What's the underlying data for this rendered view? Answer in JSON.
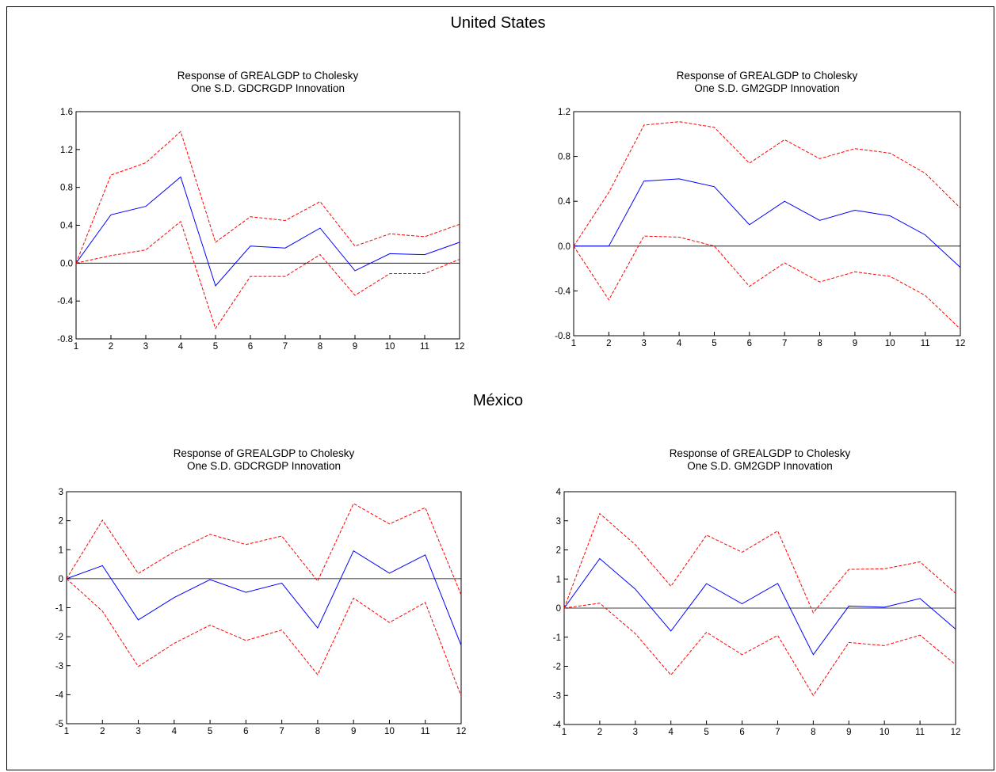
{
  "sections": [
    {
      "title": "United States"
    },
    {
      "title": "México"
    }
  ],
  "chart_data": [
    {
      "type": "line",
      "title_line1": "Response of GREALGDP to Cholesky",
      "title_line2": "One S.D. GDCRGDP Innovation",
      "x": [
        1,
        2,
        3,
        4,
        5,
        6,
        7,
        8,
        9,
        10,
        11,
        12
      ],
      "ylim": [
        -0.8,
        1.6
      ],
      "yticks": [
        "-0.8",
        "-0.4",
        "0.0",
        "0.4",
        "0.8",
        "1.2",
        "1.6"
      ],
      "grid": false,
      "series": [
        {
          "role": "response",
          "color": "#0000ff",
          "style": "solid",
          "values": [
            0.0,
            0.51,
            0.6,
            0.91,
            -0.24,
            0.18,
            0.16,
            0.37,
            -0.08,
            0.1,
            0.09,
            0.22
          ]
        },
        {
          "role": "upper band",
          "color": "#ff0000",
          "style": "dashed",
          "values": [
            0.0,
            0.93,
            1.06,
            1.39,
            0.22,
            0.49,
            0.45,
            0.65,
            0.18,
            0.31,
            0.28,
            0.41
          ]
        },
        {
          "role": "lower band",
          "color": "#ff0000",
          "style": "dashed",
          "values": [
            0.0,
            0.08,
            0.14,
            0.44,
            -0.69,
            -0.14,
            -0.14,
            0.09,
            -0.34,
            -0.11,
            -0.11,
            0.04
          ]
        }
      ]
    },
    {
      "type": "line",
      "title_line1": "Response of GREALGDP to Cholesky",
      "title_line2": "One S.D. GM2GDP Innovation",
      "x": [
        1,
        2,
        3,
        4,
        5,
        6,
        7,
        8,
        9,
        10,
        11,
        12
      ],
      "ylim": [
        -0.8,
        1.2
      ],
      "yticks": [
        "-0.8",
        "-0.4",
        "0.0",
        "0.4",
        "0.8",
        "1.2"
      ],
      "grid": false,
      "series": [
        {
          "role": "response",
          "color": "#0000ff",
          "style": "solid",
          "values": [
            0.0,
            0.0,
            0.58,
            0.6,
            0.53,
            0.19,
            0.4,
            0.23,
            0.32,
            0.27,
            0.1,
            -0.19
          ]
        },
        {
          "role": "upper band",
          "color": "#ff0000",
          "style": "dashed",
          "values": [
            0.0,
            0.48,
            1.08,
            1.11,
            1.06,
            0.74,
            0.95,
            0.78,
            0.87,
            0.83,
            0.65,
            0.34
          ]
        },
        {
          "role": "lower band",
          "color": "#ff0000",
          "style": "dashed",
          "values": [
            0.0,
            -0.48,
            0.09,
            0.08,
            0.0,
            -0.36,
            -0.15,
            -0.32,
            -0.23,
            -0.27,
            -0.44,
            -0.74
          ]
        }
      ]
    },
    {
      "type": "line",
      "title_line1": "Response of GREALGDP to Cholesky",
      "title_line2": "One S.D. GDCRGDP Innovation",
      "x": [
        1,
        2,
        3,
        4,
        5,
        6,
        7,
        8,
        9,
        10,
        11,
        12
      ],
      "ylim": [
        -5,
        3
      ],
      "yticks": [
        "-5",
        "-4",
        "-3",
        "-2",
        "-1",
        "0",
        "1",
        "2",
        "3"
      ],
      "grid": false,
      "series": [
        {
          "role": "response",
          "color": "#0000ff",
          "style": "solid",
          "values": [
            0.0,
            0.45,
            -1.42,
            -0.65,
            -0.03,
            -0.47,
            -0.15,
            -1.7,
            0.96,
            0.19,
            0.82,
            -2.3
          ]
        },
        {
          "role": "upper band",
          "color": "#ff0000",
          "style": "dashed",
          "values": [
            0.0,
            2.02,
            0.18,
            0.93,
            1.53,
            1.18,
            1.47,
            -0.08,
            2.59,
            1.89,
            2.45,
            -0.56
          ]
        },
        {
          "role": "lower band",
          "color": "#ff0000",
          "style": "dashed",
          "values": [
            0.0,
            -1.12,
            -3.03,
            -2.23,
            -1.6,
            -2.13,
            -1.77,
            -3.31,
            -0.67,
            -1.51,
            -0.82,
            -4.05
          ]
        }
      ]
    },
    {
      "type": "line",
      "title_line1": "Response of GREALGDP to Cholesky",
      "title_line2": "One S.D. GM2GDP Innovation",
      "x": [
        1,
        2,
        3,
        4,
        5,
        6,
        7,
        8,
        9,
        10,
        11,
        12
      ],
      "ylim": [
        -4,
        4
      ],
      "yticks": [
        "-4",
        "-3",
        "-2",
        "-1",
        "0",
        "1",
        "2",
        "3",
        "4"
      ],
      "grid": false,
      "series": [
        {
          "role": "response",
          "color": "#0000ff",
          "style": "solid",
          "values": [
            0.0,
            1.7,
            0.65,
            -0.79,
            0.84,
            0.15,
            0.85,
            -1.6,
            0.07,
            0.03,
            0.33,
            -0.72
          ]
        },
        {
          "role": "upper band",
          "color": "#ff0000",
          "style": "dashed",
          "values": [
            0.0,
            3.25,
            2.18,
            0.75,
            2.51,
            1.92,
            2.65,
            -0.16,
            1.33,
            1.35,
            1.59,
            0.51
          ]
        },
        {
          "role": "lower band",
          "color": "#ff0000",
          "style": "dashed",
          "values": [
            0.0,
            0.17,
            -0.88,
            -2.3,
            -0.83,
            -1.6,
            -0.94,
            -3.0,
            -1.18,
            -1.29,
            -0.93,
            -1.94
          ]
        }
      ]
    }
  ]
}
